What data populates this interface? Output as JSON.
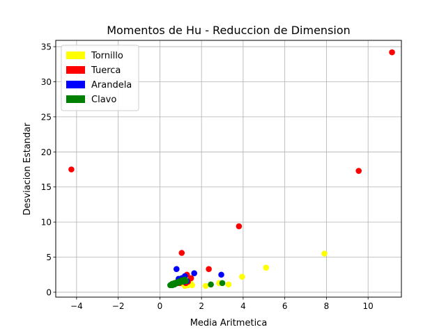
{
  "chart_data": {
    "type": "scatter",
    "title": "Momentos de Hu - Reduccion de Dimension",
    "xlabel": "Media Aritmetica",
    "ylabel": "Desviacion Estandar",
    "xlim": [
      -5,
      11.6
    ],
    "ylim": [
      -0.7,
      35.9
    ],
    "xticks": [
      -4,
      -2,
      0,
      2,
      4,
      6,
      8,
      10
    ],
    "yticks": [
      0,
      5,
      10,
      15,
      20,
      25,
      30,
      35
    ],
    "grid": true,
    "legend_position": "top-left",
    "series": [
      {
        "name": "Tornillo",
        "color": "#ffff00",
        "points": [
          [
            7.9,
            5.5
          ],
          [
            5.1,
            3.5
          ],
          [
            3.95,
            2.2
          ],
          [
            3.3,
            1.1
          ],
          [
            2.85,
            1.3
          ],
          [
            2.2,
            0.9
          ],
          [
            1.55,
            1.0
          ],
          [
            1.35,
            1.0
          ],
          [
            1.2,
            0.9
          ],
          [
            1.45,
            1.6
          ],
          [
            1.1,
            1.2
          ]
        ]
      },
      {
        "name": "Tuerca",
        "color": "#ff0000",
        "points": [
          [
            11.15,
            34.2
          ],
          [
            -4.25,
            17.5
          ],
          [
            9.55,
            17.3
          ],
          [
            3.8,
            9.4
          ],
          [
            1.05,
            5.6
          ],
          [
            2.35,
            3.3
          ],
          [
            1.3,
            2.5
          ],
          [
            1.5,
            2.0
          ],
          [
            1.35,
            1.5
          ],
          [
            1.1,
            1.7
          ],
          [
            1.25,
            1.3
          ],
          [
            0.95,
            1.3
          ]
        ]
      },
      {
        "name": "Arandela",
        "color": "#0000ff",
        "points": [
          [
            0.8,
            3.3
          ],
          [
            1.65,
            2.7
          ],
          [
            2.95,
            2.5
          ],
          [
            1.2,
            2.3
          ],
          [
            1.05,
            2.0
          ],
          [
            0.9,
            1.9
          ],
          [
            1.3,
            1.6
          ],
          [
            1.15,
            1.5
          ]
        ]
      },
      {
        "name": "Clavo",
        "color": "#008000",
        "points": [
          [
            0.5,
            1.0
          ],
          [
            0.55,
            1.1
          ],
          [
            0.6,
            1.0
          ],
          [
            0.65,
            1.2
          ],
          [
            0.7,
            1.3
          ],
          [
            0.75,
            1.2
          ],
          [
            0.8,
            1.4
          ],
          [
            0.85,
            1.3
          ],
          [
            0.9,
            1.5
          ],
          [
            0.95,
            1.4
          ],
          [
            1.0,
            1.6
          ],
          [
            1.05,
            1.7
          ],
          [
            1.1,
            1.5
          ],
          [
            1.2,
            1.8
          ],
          [
            1.25,
            1.6
          ],
          [
            3.0,
            1.3
          ],
          [
            2.45,
            1.1
          ],
          [
            0.6,
            1.2
          ],
          [
            0.7,
            1.1
          ]
        ]
      }
    ]
  }
}
